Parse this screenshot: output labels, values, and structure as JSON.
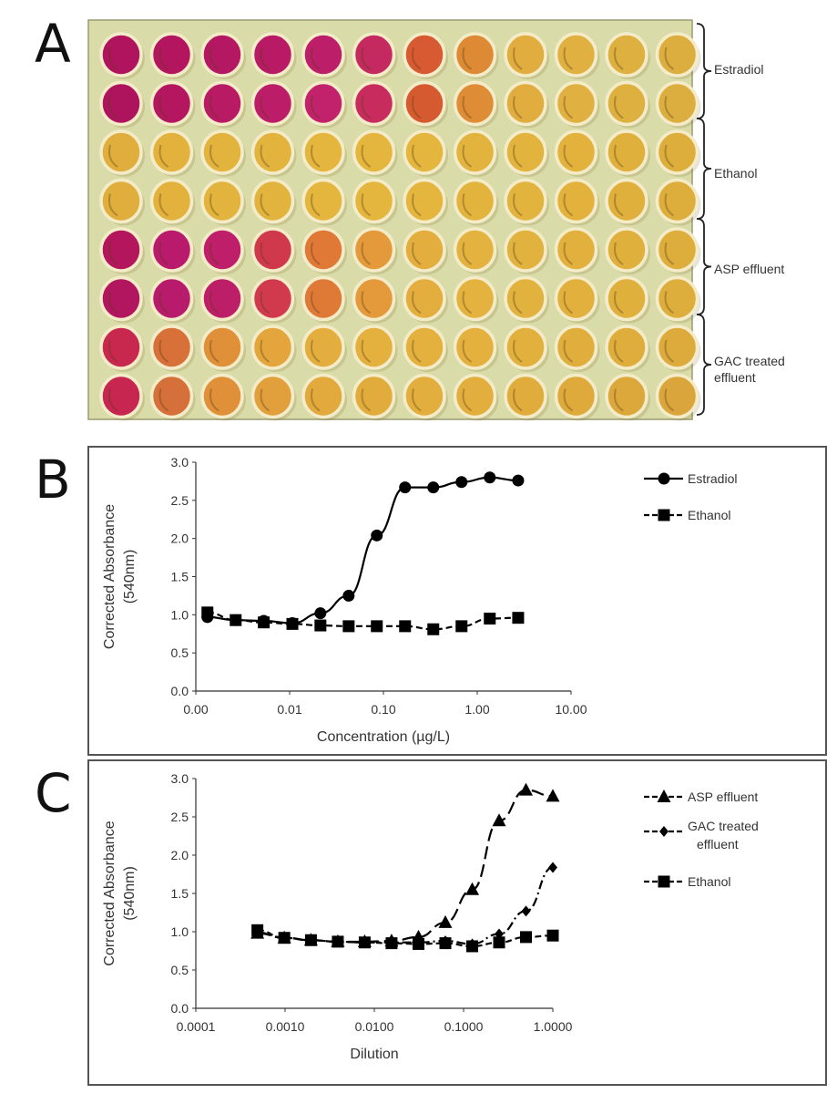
{
  "panels": {
    "a": "A",
    "b": "B",
    "c": "C"
  },
  "plate": {
    "rows": 8,
    "cols": 12,
    "plate_color": "#d9dca8",
    "groups": [
      {
        "label": "Estradiol"
      },
      {
        "label": "Ethanol"
      },
      {
        "label": "ASP effluent"
      },
      {
        "label_lines": [
          "GAC treated",
          "effluent"
        ]
      }
    ],
    "well_colors": [
      [
        "#b0145e",
        "#b3165f",
        "#b51862",
        "#b81a66",
        "#bd1e6a",
        "#c42a60",
        "#d85a32",
        "#de8a34",
        "#e0ad3e",
        "#e0b040",
        "#ddb040",
        "#dcae40"
      ],
      [
        "#ae145e",
        "#b4175f",
        "#b81a64",
        "#bc1d68",
        "#c2226c",
        "#c82c5e",
        "#d65a30",
        "#df8c36",
        "#e0ad3e",
        "#e0b040",
        "#ddb040",
        "#dcae40"
      ],
      [
        "#e0ae3c",
        "#e2b23c",
        "#e2b43e",
        "#e2b43e",
        "#e4b63e",
        "#e4b63e",
        "#e4b63e",
        "#e2b43e",
        "#e2b43e",
        "#e2b23c",
        "#e0b03c",
        "#deae3c"
      ],
      [
        "#e0ae3c",
        "#e2b23c",
        "#e2b43e",
        "#e2b43e",
        "#e4b63e",
        "#e4b63e",
        "#e4b63e",
        "#e2b43e",
        "#e2b43e",
        "#e2b23c",
        "#e0b03c",
        "#deae3c"
      ],
      [
        "#b4165e",
        "#ba1a6c",
        "#be1e6a",
        "#d0384c",
        "#e07836",
        "#e49a3a",
        "#e4ae3e",
        "#e4b23e",
        "#e2b23e",
        "#e2b03c",
        "#e0b03c",
        "#deae3c"
      ],
      [
        "#b2165e",
        "#b81a6c",
        "#bc1e68",
        "#d03a4c",
        "#df7a36",
        "#e49a3a",
        "#e4ae3e",
        "#e4b23e",
        "#e2b23e",
        "#e2b03c",
        "#e0b03c",
        "#deae3c"
      ],
      [
        "#c8284e",
        "#d8703a",
        "#e09038",
        "#e4a63c",
        "#e4ae3e",
        "#e4b03e",
        "#e4b03e",
        "#e4b03e",
        "#e2b03c",
        "#e0ae3c",
        "#dead3c",
        "#dcab3c"
      ],
      [
        "#c62650",
        "#d6703a",
        "#e09038",
        "#e2a03c",
        "#e2aa3c",
        "#e2ac3c",
        "#e2ae3e",
        "#e2ae3e",
        "#e0ac3c",
        "#deaa3c",
        "#dca83c",
        "#daa63c"
      ]
    ]
  },
  "chart_data": [
    {
      "id": "B",
      "type": "line",
      "xscale": "log",
      "xlabel": "Concentration (µg/L)",
      "ylabel_lines": [
        "Corrected Absorbance",
        "(540nm)"
      ],
      "xlim": [
        0.001,
        10
      ],
      "ylim": [
        0,
        3
      ],
      "xticks": [
        0.001,
        0.01,
        0.1,
        1,
        10
      ],
      "xtick_labels": [
        "0.00",
        "0.01",
        "0.10",
        "1.00",
        "10.00"
      ],
      "yticks": [
        0,
        0.5,
        1,
        1.5,
        2,
        2.5,
        3
      ],
      "ytick_labels": [
        "0.0",
        "0.5",
        "1.0",
        "1.5",
        "2.0",
        "2.5",
        "3.0"
      ],
      "legend_position": "right",
      "x": [
        0.00133,
        0.00266,
        0.0053,
        0.0107,
        0.0213,
        0.0426,
        0.085,
        0.17,
        0.34,
        0.68,
        1.36,
        2.73
      ],
      "series": [
        {
          "name": "Estradiol",
          "marker": "circle",
          "dash": "solid",
          "values": [
            0.97,
            0.93,
            0.92,
            0.89,
            1.02,
            1.25,
            2.04,
            2.67,
            2.67,
            2.74,
            2.8,
            2.76
          ]
        },
        {
          "name": "Ethanol",
          "marker": "square",
          "dash": "dashed",
          "values": [
            1.03,
            0.93,
            0.9,
            0.88,
            0.86,
            0.85,
            0.85,
            0.85,
            0.81,
            0.85,
            0.95,
            0.96
          ]
        }
      ]
    },
    {
      "id": "C",
      "type": "line",
      "xscale": "log",
      "xlabel": "Dilution",
      "ylabel_lines": [
        "Corrected Absorbance",
        "(540nm)"
      ],
      "xlim": [
        0.0001,
        1
      ],
      "ylim": [
        0,
        3
      ],
      "xticks": [
        0.0001,
        0.001,
        0.01,
        0.1,
        1
      ],
      "xtick_labels": [
        "0.0001",
        "0.0010",
        "0.0100",
        "0.1000",
        "1.0000"
      ],
      "yticks": [
        0,
        0.5,
        1,
        1.5,
        2,
        2.5,
        3
      ],
      "ytick_labels": [
        "0.0",
        "0.5",
        "1.0",
        "1.5",
        "2.0",
        "2.5",
        "3.0"
      ],
      "legend_position": "right",
      "x": [
        0.00049,
        0.00098,
        0.00195,
        0.0039,
        0.0078,
        0.0156,
        0.03125,
        0.0625,
        0.125,
        0.25,
        0.5,
        1
      ],
      "series": [
        {
          "name": "ASP effluent",
          "marker": "triangle",
          "dash": "longdash",
          "values": [
            0.98,
            0.92,
            0.89,
            0.87,
            0.87,
            0.88,
            0.93,
            1.12,
            1.55,
            2.45,
            2.85,
            2.77
          ]
        },
        {
          "name_lines": [
            "GAC treated",
            "effluent"
          ],
          "name": "GAC treated effluent",
          "marker": "diamond",
          "dash": "dashdot",
          "values": [
            0.99,
            0.92,
            0.89,
            0.87,
            0.86,
            0.86,
            0.86,
            0.88,
            0.84,
            0.97,
            1.27,
            1.84
          ]
        },
        {
          "name": "Ethanol",
          "marker": "square",
          "dash": "dashed",
          "values": [
            1.02,
            0.92,
            0.89,
            0.87,
            0.86,
            0.85,
            0.84,
            0.85,
            0.81,
            0.86,
            0.93,
            0.95
          ]
        }
      ]
    }
  ]
}
